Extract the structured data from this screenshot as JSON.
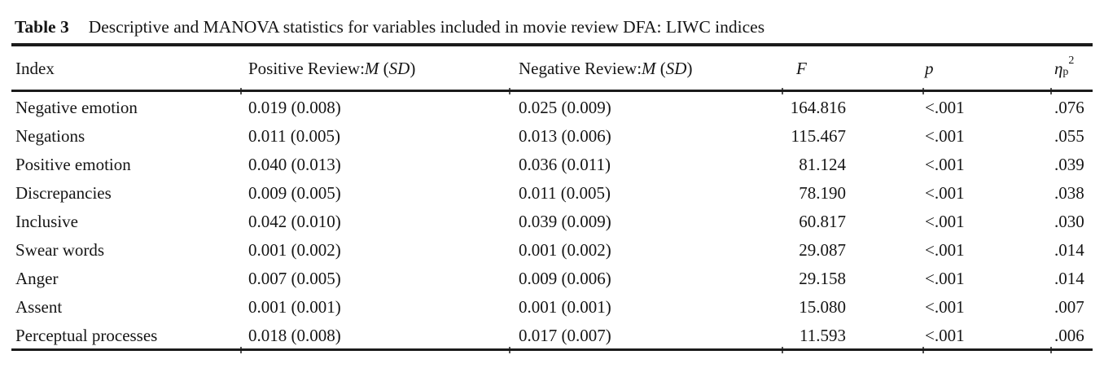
{
  "page": {
    "background": "#ffffff",
    "text_color": "#151515",
    "rule_color": "#1b1b1b"
  },
  "table": {
    "label": "Table 3",
    "caption": "Descriptive and MANOVA statistics for variables included in movie review DFA: LIWC indices",
    "header": {
      "index": "Index",
      "positive_prefix": "Positive Review: ",
      "negative_prefix": "Negative Review: ",
      "mean_symbol": "M",
      "paren_open": " (",
      "sd_symbol": "SD",
      "paren_close": ")",
      "f": "F",
      "p": "p",
      "eta": "η",
      "eta_sub": "p",
      "eta_sup": "2"
    },
    "rows": [
      {
        "index": "Negative emotion",
        "positive": "0.019 (0.008)",
        "negative": "0.025 (0.009)",
        "f": "164.816",
        "p": "<.001",
        "eta": ".076"
      },
      {
        "index": "Negations",
        "positive": "0.011 (0.005)",
        "negative": "0.013 (0.006)",
        "f": "115.467",
        "p": "<.001",
        "eta": ".055"
      },
      {
        "index": "Positive emotion",
        "positive": "0.040 (0.013)",
        "negative": "0.036 (0.011)",
        "f": "81.124",
        "p": "<.001",
        "eta": ".039"
      },
      {
        "index": "Discrepancies",
        "positive": "0.009 (0.005)",
        "negative": "0.011 (0.005)",
        "f": "78.190",
        "p": "<.001",
        "eta": ".038"
      },
      {
        "index": "Inclusive",
        "positive": "0.042 (0.010)",
        "negative": "0.039 (0.009)",
        "f": "60.817",
        "p": "<.001",
        "eta": ".030"
      },
      {
        "index": "Swear words",
        "positive": "0.001 (0.002)",
        "negative": "0.001 (0.002)",
        "f": "29.087",
        "p": "<.001",
        "eta": ".014"
      },
      {
        "index": "Anger",
        "positive": "0.007 (0.005)",
        "negative": "0.009 (0.006)",
        "f": "29.158",
        "p": "<.001",
        "eta": ".014"
      },
      {
        "index": "Assent",
        "positive": "0.001 (0.001)",
        "negative": "0.001 (0.001)",
        "f": "15.080",
        "p": "<.001",
        "eta": ".007"
      },
      {
        "index": "Perceptual processes",
        "positive": "0.018 (0.008)",
        "negative": "0.017 (0.007)",
        "f": "11.593",
        "p": "<.001",
        "eta": ".006"
      }
    ]
  }
}
